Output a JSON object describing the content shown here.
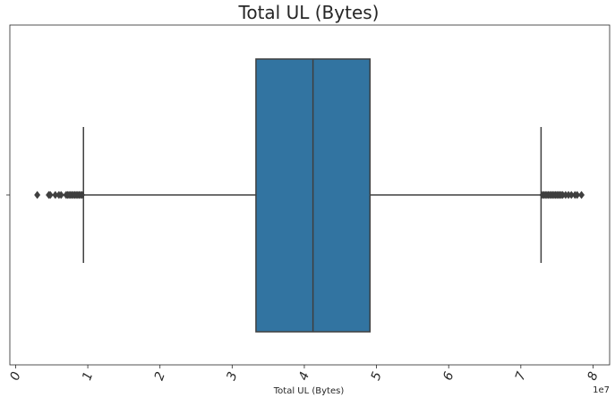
{
  "chart_data": {
    "type": "box",
    "title": "Total UL (Bytes)",
    "xlabel": "Total UL (Bytes)",
    "ylabel": "",
    "orientation": "horizontal",
    "scale_multiplier": 10000000,
    "axis_offset_label": "1e7",
    "xlim": [
      -0.08,
      8.23
    ],
    "x_ticks": [
      0,
      1,
      2,
      3,
      4,
      5,
      6,
      7,
      8
    ],
    "x_tick_labels": [
      "0",
      "1",
      "2",
      "3",
      "4",
      "5",
      "6",
      "7",
      "8"
    ],
    "box": {
      "whisker_low": 0.94,
      "q1": 3.33,
      "median": 4.12,
      "q3": 4.91,
      "whisker_high": 7.28
    },
    "outliers_low": [
      0.3,
      0.46,
      0.48,
      0.55,
      0.6,
      0.63,
      0.7,
      0.72,
      0.74,
      0.76,
      0.78,
      0.8,
      0.82,
      0.84,
      0.86,
      0.88,
      0.9,
      0.92
    ],
    "outliers_high": [
      7.3,
      7.32,
      7.34,
      7.36,
      7.38,
      7.4,
      7.42,
      7.44,
      7.46,
      7.48,
      7.5,
      7.52,
      7.54,
      7.56,
      7.58,
      7.62,
      7.66,
      7.7,
      7.75,
      7.78,
      7.84
    ],
    "box_color": "#3274a1",
    "line_color": "#3f3f3f",
    "grid": false,
    "legend": "none"
  }
}
